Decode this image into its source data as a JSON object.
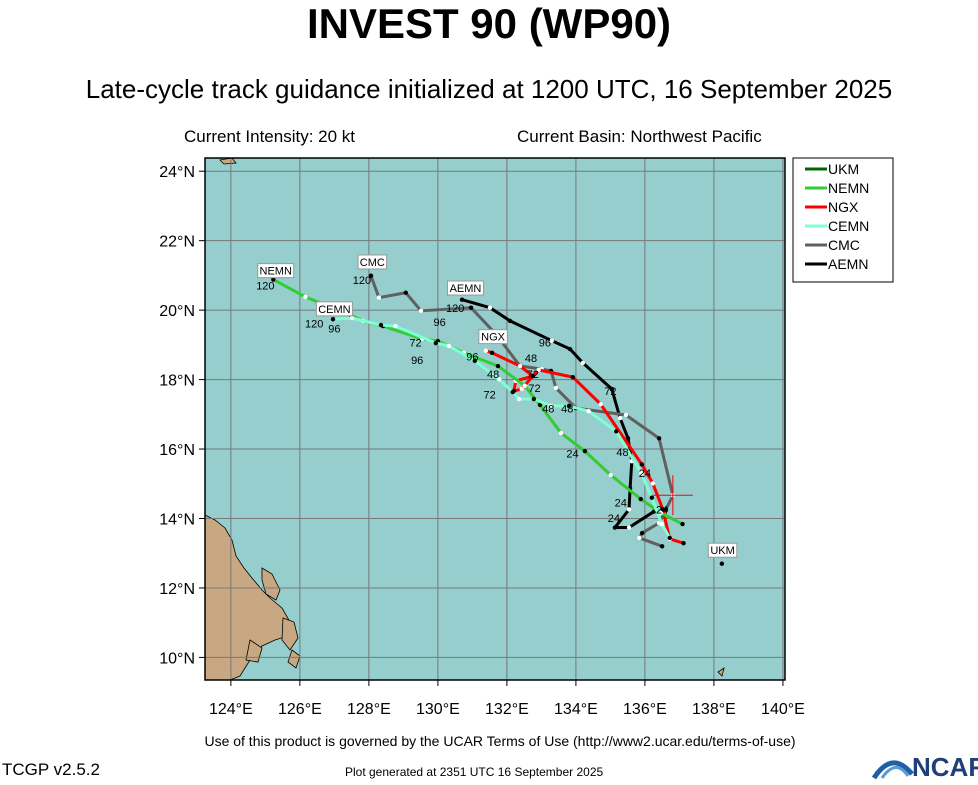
{
  "title": "INVEST 90 (WP90)",
  "subtitle": "Late-cycle track guidance initialized at 1200 UTC, 16 September 2025",
  "current_intensity": "Current Intensity: 20 kt",
  "current_basin": "Current Basin: Northwest Pacific",
  "footer_terms": "Use of this product is governed by the UCAR Terms of Use (http://www2.ucar.edu/terms-of-use)",
  "version": "TCGP v2.5.2",
  "generated": "Plot generated at 2351 UTC   16 September 2025",
  "logo_text": "NCAR",
  "map": {
    "lon_range": [
      123.25,
      140.06
    ],
    "lat_range": [
      9.35,
      24.38
    ],
    "lon_ticks": [
      124,
      126,
      128,
      130,
      132,
      134,
      136,
      138,
      140
    ],
    "lat_ticks": [
      10,
      12,
      14,
      16,
      18,
      20,
      22,
      24
    ],
    "lon_tick_labels": [
      "124°E",
      "126°E",
      "128°E",
      "130°E",
      "132°E",
      "134°E",
      "136°E",
      "138°E",
      "140°E"
    ],
    "lat_tick_labels": [
      "10°N",
      "12°N",
      "14°N",
      "16°N",
      "18°N",
      "20°N",
      "22°N",
      "24°N"
    ],
    "ocean_color": "#96cdcd",
    "land_color": "#c8a882",
    "current_position": [
      136.81,
      14.67
    ]
  },
  "legend": [
    {
      "name": "UKM",
      "color": "#006400"
    },
    {
      "name": "NEMN",
      "color": "#32cd32"
    },
    {
      "name": "NGX",
      "color": "#ff0000"
    },
    {
      "name": "CEMN",
      "color": "#7fffd4"
    },
    {
      "name": "CMC",
      "color": "#606060"
    },
    {
      "name": "AEMN",
      "color": "#000000"
    }
  ],
  "tracks": [
    {
      "name": "AEMN",
      "color": "#000000",
      "points": [
        [
          136.26,
          14.2
        ],
        [
          135.54,
          13.74
        ],
        [
          135.13,
          13.74
        ],
        [
          135.54,
          14.26
        ],
        [
          135.57,
          14.87
        ],
        [
          135.62,
          15.65
        ],
        [
          135.51,
          16.31
        ],
        [
          135.28,
          16.89
        ],
        [
          135.04,
          17.73
        ],
        [
          134.2,
          18.48
        ],
        [
          133.83,
          18.88
        ],
        [
          133.3,
          19.12
        ],
        [
          132.09,
          19.69
        ],
        [
          131.51,
          20.07
        ],
        [
          130.7,
          20.3
        ]
      ],
      "labels": [
        {
          "text": "24",
          "at": [
            135.1,
            13.9
          ]
        },
        {
          "text": "48",
          "at": [
            135.35,
            15.8
          ]
        },
        {
          "text": "72",
          "at": [
            135.0,
            17.55
          ]
        },
        {
          "text": "96",
          "at": [
            133.1,
            18.95
          ]
        },
        {
          "text": "120",
          "at": [
            130.5,
            19.95
          ]
        }
      ],
      "tag": {
        "text": "AEMN",
        "at": [
          130.8,
          20.55
        ]
      }
    },
    {
      "name": "CMC",
      "color": "#606060",
      "points": [
        [
          136.5,
          13.2
        ],
        [
          135.84,
          13.44
        ],
        [
          135.92,
          13.58
        ],
        [
          136.41,
          13.87
        ],
        [
          136.61,
          14.26
        ],
        [
          136.81,
          14.67
        ],
        [
          136.41,
          16.31
        ],
        [
          135.45,
          16.98
        ],
        [
          134.0,
          17.18
        ],
        [
          133.42,
          17.76
        ],
        [
          133.28,
          18.25
        ],
        [
          133.01,
          18.3
        ],
        [
          132.38,
          18.39
        ],
        [
          131.68,
          19.31
        ],
        [
          130.96,
          20.07
        ],
        [
          129.51,
          19.98
        ],
        [
          129.07,
          20.5
        ],
        [
          128.29,
          20.36
        ],
        [
          128.06,
          20.99
        ]
      ],
      "labels": [
        {
          "text": "24",
          "at": [
            136.5,
            14.15
          ]
        },
        {
          "text": "48",
          "at": [
            133.75,
            17.05
          ]
        },
        {
          "text": "72",
          "at": [
            132.75,
            18.05
          ]
        },
        {
          "text": "96",
          "at": [
            130.05,
            19.75
          ]
        },
        {
          "text": "120",
          "at": [
            127.8,
            20.75
          ]
        }
      ],
      "tag": {
        "text": "CMC",
        "at": [
          128.1,
          21.3
        ]
      }
    },
    {
      "name": "NGX",
      "color": "#ff0000",
      "points": [
        [
          137.12,
          13.29
        ],
        [
          136.72,
          13.41
        ],
        [
          136.52,
          14.26
        ],
        [
          136.23,
          15.01
        ],
        [
          135.91,
          15.56
        ],
        [
          134.72,
          17.29
        ],
        [
          133.91,
          18.07
        ],
        [
          132.92,
          18.28
        ],
        [
          132.75,
          18.1
        ],
        [
          132.43,
          17.73
        ],
        [
          132.2,
          17.67
        ],
        [
          132.26,
          17.96
        ],
        [
          132.75,
          18.1
        ],
        [
          132.38,
          18.39
        ],
        [
          131.57,
          18.77
        ],
        [
          131.39,
          18.83
        ]
      ],
      "labels": [
        {
          "text": "24",
          "at": [
            136.0,
            15.2
          ]
        },
        {
          "text": "48",
          "at": [
            132.7,
            18.1
          ]
        },
        {
          "text": "72",
          "at": [
            132.8,
            17.85
          ]
        },
        {
          "text": "96",
          "at": [
            131.0,
            18.55
          ]
        }
      ],
      "tag": {
        "text": "NGX",
        "at": [
          131.6,
          19.15
        ]
      }
    },
    {
      "name": "NEMN",
      "color": "#32cd32",
      "points": [
        [
          137.09,
          13.84
        ],
        [
          136.46,
          14.16
        ],
        [
          135.88,
          14.56
        ],
        [
          135.01,
          15.25
        ],
        [
          134.26,
          15.94
        ],
        [
          133.57,
          16.46
        ],
        [
          132.96,
          17.27
        ],
        [
          132.52,
          17.82
        ],
        [
          131.74,
          18.39
        ],
        [
          130.75,
          18.77
        ],
        [
          130.0,
          19.11
        ],
        [
          129.54,
          19.17
        ],
        [
          128.41,
          19.54
        ],
        [
          127.83,
          19.69
        ],
        [
          127.46,
          19.86
        ],
        [
          126.16,
          20.38
        ],
        [
          125.23,
          20.88
        ]
      ],
      "labels": [
        {
          "text": "24",
          "at": [
            133.9,
            15.75
          ]
        },
        {
          "text": "48",
          "at": [
            131.6,
            18.05
          ]
        },
        {
          "text": "72",
          "at": [
            129.35,
            18.95
          ]
        },
        {
          "text": "96",
          "at": [
            127.0,
            19.55
          ]
        },
        {
          "text": "120",
          "at": [
            125.0,
            20.6
          ]
        }
      ],
      "tag": {
        "text": "NEMN",
        "at": [
          125.3,
          21.05
        ]
      }
    },
    {
      "name": "CEMN",
      "color": "#7fffd4",
      "points": [
        [
          136.72,
          13.44
        ],
        [
          136.49,
          13.84
        ],
        [
          136.2,
          14.6
        ],
        [
          135.9,
          15.3
        ],
        [
          135.17,
          16.51
        ],
        [
          134.37,
          17.09
        ],
        [
          133.8,
          17.24
        ],
        [
          133.28,
          17.24
        ],
        [
          132.78,
          17.44
        ],
        [
          132.35,
          17.44
        ],
        [
          132.17,
          17.64
        ],
        [
          131.77,
          18.01
        ],
        [
          131.07,
          18.54
        ],
        [
          130.32,
          18.97
        ],
        [
          129.94,
          19.05
        ],
        [
          128.77,
          19.54
        ],
        [
          128.35,
          19.57
        ],
        [
          127.51,
          19.77
        ],
        [
          126.96,
          19.74
        ]
      ],
      "labels": [
        {
          "text": "24",
          "at": [
            135.3,
            14.15
          ]
        },
        {
          "text": "48",
          "at": [
            133.2,
            17.05
          ]
        },
        {
          "text": "72",
          "at": [
            131.5,
            17.45
          ]
        },
        {
          "text": "96",
          "at": [
            129.4,
            18.85
          ]
        },
        {
          "text": "120",
          "at": [
            126.7,
            19.5
          ]
        }
      ],
      "tag": {
        "text": "CEMN",
        "at": [
          127.0,
          19.95
        ]
      }
    },
    {
      "name": "UKM",
      "color": "#006400",
      "points": [
        [
          138.23,
          12.7
        ]
      ],
      "labels": [],
      "tag": {
        "text": "UKM",
        "at": [
          138.25,
          13.0
        ]
      }
    }
  ]
}
